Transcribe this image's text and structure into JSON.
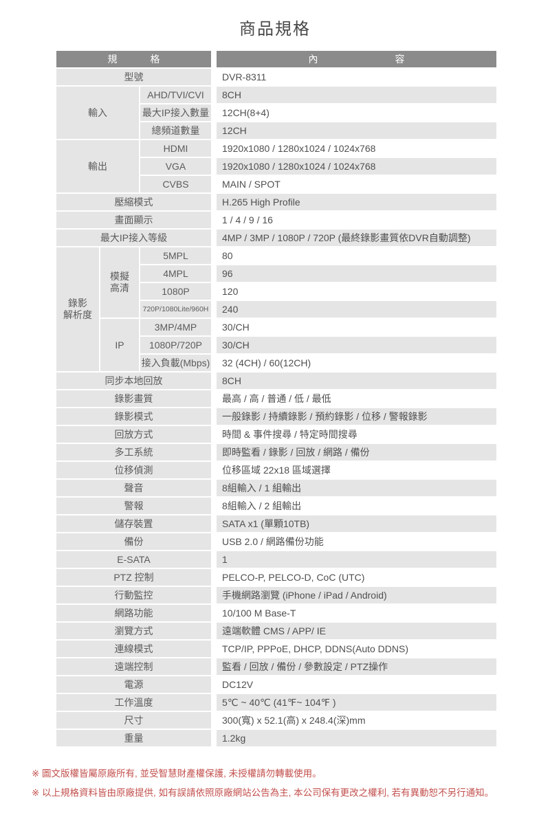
{
  "page": {
    "title": "商品規格"
  },
  "colors": {
    "header_bg": "#8b8b8b",
    "cell_gray": "#e5e5e5",
    "note_red": "#c2504d",
    "text": "#4f4f4f"
  },
  "table": {
    "header": {
      "left": [
        "規",
        "格"
      ],
      "right": [
        "內",
        "容"
      ]
    },
    "rows": [
      {
        "cells": [
          {
            "t": "型號",
            "c": 3,
            "k": "lab"
          },
          {
            "t": "DVR-8311",
            "k": "val"
          }
        ]
      },
      {
        "cells": [
          {
            "t": "輸入",
            "c": 2,
            "r": 3,
            "k": "lab"
          },
          {
            "t": "AHD/TVI/CVI",
            "k": "lab"
          },
          {
            "t": "8CH",
            "k": "val"
          }
        ]
      },
      {
        "cells": [
          {
            "t": "最大IP接入數量",
            "k": "lab"
          },
          {
            "t": "12CH(8+4)",
            "k": "val"
          }
        ]
      },
      {
        "cells": [
          {
            "t": "總頻道數量",
            "k": "lab"
          },
          {
            "t": "12CH",
            "k": "val"
          }
        ]
      },
      {
        "cells": [
          {
            "t": "輸出",
            "c": 2,
            "r": 3,
            "k": "lab"
          },
          {
            "t": "HDMI",
            "k": "lab"
          },
          {
            "t": "1920x1080 / 1280x1024 / 1024x768",
            "k": "val"
          }
        ]
      },
      {
        "cells": [
          {
            "t": "VGA",
            "k": "lab"
          },
          {
            "t": "1920x1080 / 1280x1024 / 1024x768",
            "k": "val"
          }
        ]
      },
      {
        "cells": [
          {
            "t": "CVBS",
            "k": "lab"
          },
          {
            "t": "MAIN / SPOT",
            "k": "val"
          }
        ]
      },
      {
        "cells": [
          {
            "t": "壓縮模式",
            "c": 3,
            "k": "lab"
          },
          {
            "t": "H.265 High Profile",
            "k": "val"
          }
        ]
      },
      {
        "cells": [
          {
            "t": "畫面顯示",
            "c": 3,
            "k": "lab"
          },
          {
            "t": "1 / 4 / 9 / 16",
            "k": "val"
          }
        ]
      },
      {
        "cells": [
          {
            "t": "最大IP接入等級",
            "c": 3,
            "k": "lab"
          },
          {
            "t": "4MP / 3MP / 1080P / 720P (最終錄影畫質依DVR自動調整)",
            "k": "val"
          }
        ]
      },
      {
        "cells": [
          {
            "t": "錄影\n解析度",
            "r": 7,
            "k": "lab"
          },
          {
            "t": "模擬\n高清",
            "r": 4,
            "k": "lab"
          },
          {
            "t": "5MPL",
            "k": "lab"
          },
          {
            "t": "80",
            "k": "val"
          }
        ]
      },
      {
        "cells": [
          {
            "t": "4MPL",
            "k": "lab"
          },
          {
            "t": "96",
            "k": "val"
          }
        ]
      },
      {
        "cells": [
          {
            "t": "1080P",
            "k": "lab"
          },
          {
            "t": "120",
            "k": "val"
          }
        ]
      },
      {
        "cells": [
          {
            "t": "720P/1080Lite/960H",
            "k": "lab sm"
          },
          {
            "t": "240",
            "k": "val"
          }
        ]
      },
      {
        "cells": [
          {
            "t": "IP",
            "r": 3,
            "k": "lab"
          },
          {
            "t": "3MP/4MP",
            "k": "lab"
          },
          {
            "t": "30/CH",
            "k": "val"
          }
        ]
      },
      {
        "cells": [
          {
            "t": "1080P/720P",
            "k": "lab"
          },
          {
            "t": "30/CH",
            "k": "val"
          }
        ]
      },
      {
        "cells": [
          {
            "t": "接入負載(Mbps)",
            "k": "lab"
          },
          {
            "t": "32 (4CH) / 60(12CH)",
            "k": "val"
          }
        ]
      },
      {
        "cells": [
          {
            "t": "同步本地回放",
            "c": 3,
            "k": "lab"
          },
          {
            "t": "8CH",
            "k": "val"
          }
        ]
      },
      {
        "cells": [
          {
            "t": "錄影畫質",
            "c": 3,
            "k": "lab"
          },
          {
            "t": "最高 / 高 / 普通 / 低 / 最低",
            "k": "val"
          }
        ]
      },
      {
        "cells": [
          {
            "t": "錄影模式",
            "c": 3,
            "k": "lab"
          },
          {
            "t": "一般錄影 / 持續錄影 / 預約錄影 / 位移 / 警報錄影",
            "k": "val"
          }
        ]
      },
      {
        "cells": [
          {
            "t": "回放方式",
            "c": 3,
            "k": "lab"
          },
          {
            "t": "時間 & 事件搜尋 / 特定時間搜尋",
            "k": "val"
          }
        ]
      },
      {
        "cells": [
          {
            "t": "多工系統",
            "c": 3,
            "k": "lab"
          },
          {
            "t": "即時監看 / 錄影 / 回放 / 網路 / 備份",
            "k": "val"
          }
        ]
      },
      {
        "cells": [
          {
            "t": "位移偵測",
            "c": 3,
            "k": "lab"
          },
          {
            "t": "位移區域 22x18 區域選擇",
            "k": "val"
          }
        ]
      },
      {
        "cells": [
          {
            "t": "聲音",
            "c": 3,
            "k": "lab"
          },
          {
            "t": "8組輸入 / 1 組輸出",
            "k": "val"
          }
        ]
      },
      {
        "cells": [
          {
            "t": "警報",
            "c": 3,
            "k": "lab"
          },
          {
            "t": "8組輸入 / 2 組輸出",
            "k": "val"
          }
        ]
      },
      {
        "cells": [
          {
            "t": "儲存裝置",
            "c": 3,
            "k": "lab"
          },
          {
            "t": "SATA x1 (單顆10TB)",
            "k": "val"
          }
        ]
      },
      {
        "cells": [
          {
            "t": "備份",
            "c": 3,
            "k": "lab"
          },
          {
            "t": "USB 2.0 / 網路備份功能",
            "k": "val"
          }
        ]
      },
      {
        "cells": [
          {
            "t": "E-SATA",
            "c": 3,
            "k": "lab"
          },
          {
            "t": "1",
            "k": "val"
          }
        ]
      },
      {
        "cells": [
          {
            "t": "PTZ 控制",
            "c": 3,
            "k": "lab"
          },
          {
            "t": "PELCO-P, PELCO-D, CoC (UTC)",
            "k": "val"
          }
        ]
      },
      {
        "cells": [
          {
            "t": "行動監控",
            "c": 3,
            "k": "lab"
          },
          {
            "t": "手機網路瀏覽 (iPhone / iPad / Android)",
            "k": "val"
          }
        ]
      },
      {
        "cells": [
          {
            "t": "網路功能",
            "c": 3,
            "k": "lab"
          },
          {
            "t": "10/100 M Base-T",
            "k": "val"
          }
        ]
      },
      {
        "cells": [
          {
            "t": "瀏覽方式",
            "c": 3,
            "k": "lab"
          },
          {
            "t": "遠端軟體 CMS / APP/ IE",
            "k": "val"
          }
        ]
      },
      {
        "cells": [
          {
            "t": "連線模式",
            "c": 3,
            "k": "lab"
          },
          {
            "t": "TCP/IP, PPPoE, DHCP, DDNS(Auto DDNS)",
            "k": "val"
          }
        ]
      },
      {
        "cells": [
          {
            "t": "遠端控制",
            "c": 3,
            "k": "lab"
          },
          {
            "t": "監看 / 回放 / 備份 / 參數設定 / PTZ操作",
            "k": "val"
          }
        ]
      },
      {
        "cells": [
          {
            "t": "電源",
            "c": 3,
            "k": "lab"
          },
          {
            "t": "DC12V",
            "k": "val"
          }
        ]
      },
      {
        "cells": [
          {
            "t": "工作溫度",
            "c": 3,
            "k": "lab"
          },
          {
            "t": "5℃ ~ 40℃ (41℉~ 104℉ )",
            "k": "val"
          }
        ]
      },
      {
        "cells": [
          {
            "t": "尺寸",
            "c": 3,
            "k": "lab"
          },
          {
            "t": "300(寬) x 52.1(高) x 248.4(深)mm",
            "k": "val"
          }
        ]
      },
      {
        "cells": [
          {
            "t": "重量",
            "c": 3,
            "k": "lab"
          },
          {
            "t": "1.2kg",
            "k": "val"
          }
        ]
      }
    ]
  },
  "footnotes": [
    "※ 圖文版權皆屬原廠所有, 並受智慧財產權保護, 未授權請勿轉載使用。",
    "※ 以上規格資料皆由原廠提供, 如有誤請依照原廠網站公告為主, 本公司保有更改之權利, 若有異動恕不另行通知。"
  ]
}
